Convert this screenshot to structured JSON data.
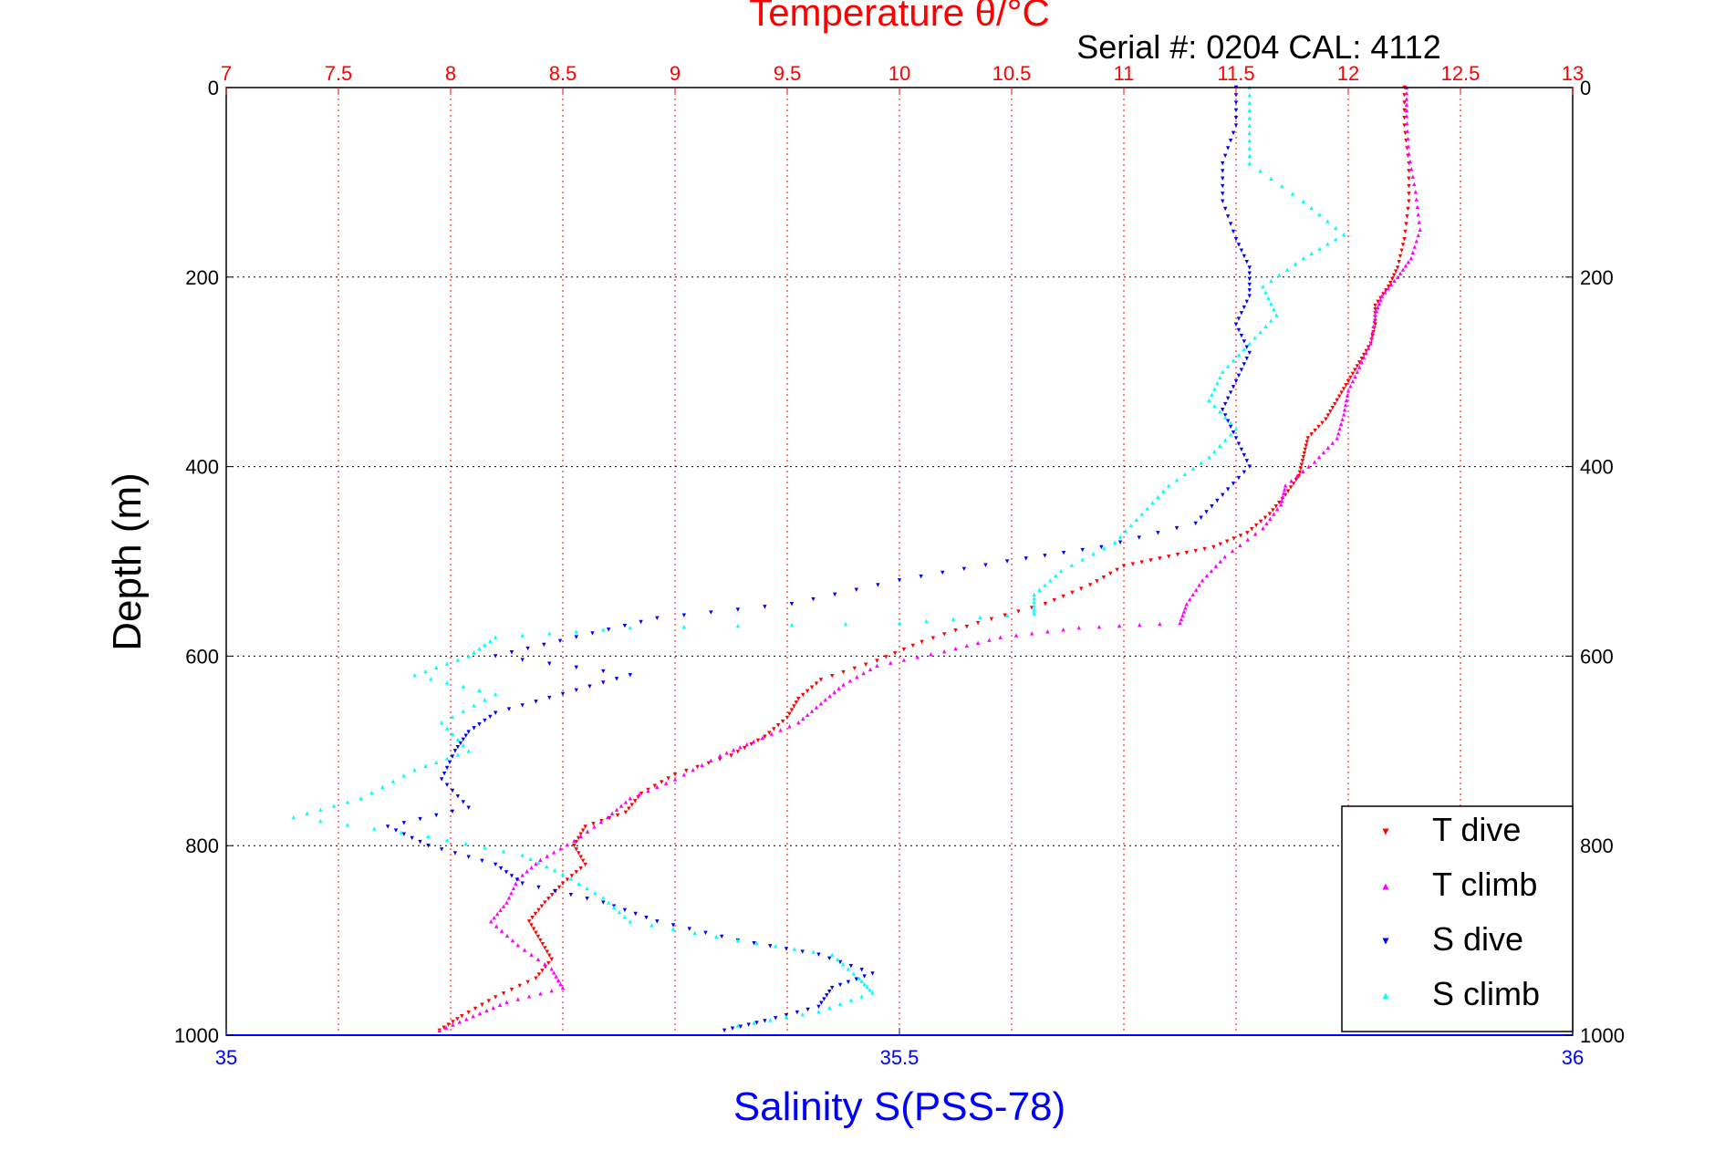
{
  "chart_data": {
    "type": "scatter",
    "title": "Temperature θ/°C",
    "subtitle": "Serial #: 0204  CAL: 4112",
    "ylabel": "Depth (m)",
    "xlabel_bottom": "Salinity S(PSS-78)",
    "xlabel_top": "Temperature θ/°C",
    "y_range": [
      0,
      1000
    ],
    "y_reversed": true,
    "y_ticks": [
      "0",
      "200",
      "400",
      "600",
      "800",
      "1000"
    ],
    "y_tick_values": [
      0,
      200,
      400,
      600,
      800,
      1000
    ],
    "temp_range": [
      7,
      13
    ],
    "temp_ticks": [
      "7",
      "7.5",
      "8",
      "8.5",
      "9",
      "9.5",
      "10",
      "10.5",
      "11",
      "11.5",
      "12",
      "12.5",
      "13"
    ],
    "temp_tick_values": [
      7,
      7.5,
      8,
      8.5,
      9,
      9.5,
      10,
      10.5,
      11,
      11.5,
      12,
      12.5,
      13
    ],
    "sal_range": [
      35,
      36
    ],
    "sal_ticks": [
      "35",
      "35.5",
      "36"
    ],
    "sal_tick_values": [
      35,
      35.5,
      36
    ],
    "grid": true,
    "legend_position": "bottom-right",
    "series": [
      {
        "name": "T dive",
        "axis": "temperature",
        "color": "#ff0000",
        "marker": "triangle-down",
        "points": [
          [
            12.25,
            0
          ],
          [
            12.25,
            40
          ],
          [
            12.27,
            80
          ],
          [
            12.27,
            120
          ],
          [
            12.25,
            160
          ],
          [
            12.22,
            190
          ],
          [
            12.18,
            210
          ],
          [
            12.12,
            230
          ],
          [
            12.12,
            250
          ],
          [
            12.1,
            270
          ],
          [
            12.05,
            290
          ],
          [
            12.0,
            310
          ],
          [
            11.95,
            330
          ],
          [
            11.9,
            350
          ],
          [
            11.82,
            370
          ],
          [
            11.8,
            390
          ],
          [
            11.78,
            410
          ],
          [
            11.72,
            430
          ],
          [
            11.65,
            450
          ],
          [
            11.55,
            470
          ],
          [
            11.4,
            485
          ],
          [
            11.2,
            495
          ],
          [
            11.0,
            505
          ],
          [
            10.85,
            525
          ],
          [
            10.65,
            545
          ],
          [
            10.35,
            565
          ],
          [
            10.1,
            585
          ],
          [
            9.9,
            605
          ],
          [
            9.65,
            625
          ],
          [
            9.55,
            645
          ],
          [
            9.5,
            665
          ],
          [
            9.4,
            685
          ],
          [
            9.25,
            705
          ],
          [
            9.0,
            725
          ],
          [
            8.85,
            745
          ],
          [
            8.78,
            765
          ],
          [
            8.6,
            780
          ],
          [
            8.55,
            800
          ],
          [
            8.6,
            820
          ],
          [
            8.5,
            840
          ],
          [
            8.42,
            860
          ],
          [
            8.35,
            880
          ],
          [
            8.4,
            900
          ],
          [
            8.45,
            920
          ],
          [
            8.38,
            940
          ],
          [
            8.2,
            960
          ],
          [
            8.05,
            980
          ],
          [
            7.95,
            995
          ]
        ]
      },
      {
        "name": "T climb",
        "axis": "temperature",
        "color": "#ff00ff",
        "marker": "triangle-up",
        "points": [
          [
            12.26,
            0
          ],
          [
            12.26,
            30
          ],
          [
            12.27,
            70
          ],
          [
            12.3,
            110
          ],
          [
            12.32,
            150
          ],
          [
            12.28,
            180
          ],
          [
            12.22,
            200
          ],
          [
            12.15,
            220
          ],
          [
            12.12,
            240
          ],
          [
            12.1,
            270
          ],
          [
            12.05,
            295
          ],
          [
            12.0,
            320
          ],
          [
            11.98,
            345
          ],
          [
            11.95,
            370
          ],
          [
            11.85,
            395
          ],
          [
            11.72,
            420
          ],
          [
            11.7,
            440
          ],
          [
            11.62,
            465
          ],
          [
            11.45,
            495
          ],
          [
            11.35,
            520
          ],
          [
            11.28,
            545
          ],
          [
            11.25,
            565
          ],
          [
            10.8,
            570
          ],
          [
            10.45,
            580
          ],
          [
            10.2,
            595
          ],
          [
            9.9,
            610
          ],
          [
            9.75,
            630
          ],
          [
            9.65,
            650
          ],
          [
            9.55,
            670
          ],
          [
            9.35,
            690
          ],
          [
            9.2,
            705
          ],
          [
            9.0,
            730
          ],
          [
            8.8,
            750
          ],
          [
            8.7,
            770
          ],
          [
            8.55,
            795
          ],
          [
            8.4,
            815
          ],
          [
            8.3,
            835
          ],
          [
            8.25,
            860
          ],
          [
            8.18,
            880
          ],
          [
            8.3,
            905
          ],
          [
            8.45,
            930
          ],
          [
            8.5,
            950
          ],
          [
            8.25,
            965
          ],
          [
            8.1,
            980
          ],
          [
            7.95,
            995
          ]
        ]
      },
      {
        "name": "S dive",
        "axis": "salinity",
        "color": "#0000ff",
        "marker": "triangle-down",
        "points": [
          [
            35.75,
            0
          ],
          [
            35.75,
            40
          ],
          [
            35.74,
            80
          ],
          [
            35.74,
            120
          ],
          [
            35.75,
            160
          ],
          [
            35.76,
            190
          ],
          [
            35.76,
            220
          ],
          [
            35.75,
            250
          ],
          [
            35.76,
            280
          ],
          [
            35.75,
            310
          ],
          [
            35.74,
            340
          ],
          [
            35.75,
            370
          ],
          [
            35.76,
            400
          ],
          [
            35.74,
            430
          ],
          [
            35.72,
            460
          ],
          [
            35.65,
            485
          ],
          [
            35.58,
            500
          ],
          [
            35.5,
            520
          ],
          [
            35.42,
            545
          ],
          [
            35.32,
            560
          ],
          [
            35.26,
            580
          ],
          [
            35.2,
            600
          ],
          [
            35.3,
            620
          ],
          [
            35.25,
            640
          ],
          [
            35.2,
            660
          ],
          [
            35.18,
            680
          ],
          [
            35.17,
            700
          ],
          [
            35.16,
            730
          ],
          [
            35.18,
            760
          ],
          [
            35.12,
            780
          ],
          [
            35.15,
            800
          ],
          [
            35.2,
            820
          ],
          [
            35.22,
            840
          ],
          [
            35.28,
            860
          ],
          [
            35.32,
            880
          ],
          [
            35.38,
            900
          ],
          [
            35.44,
            915
          ],
          [
            35.48,
            935
          ],
          [
            35.45,
            950
          ],
          [
            35.44,
            970
          ],
          [
            35.4,
            985
          ],
          [
            35.37,
            995
          ]
        ]
      },
      {
        "name": "S climb",
        "axis": "salinity",
        "color": "#00ffff",
        "marker": "triangle-up",
        "points": [
          [
            35.76,
            0
          ],
          [
            35.76,
            40
          ],
          [
            35.76,
            80
          ],
          [
            35.8,
            120
          ],
          [
            35.83,
            155
          ],
          [
            35.8,
            180
          ],
          [
            35.77,
            210
          ],
          [
            35.78,
            240
          ],
          [
            35.76,
            270
          ],
          [
            35.74,
            300
          ],
          [
            35.73,
            330
          ],
          [
            35.75,
            360
          ],
          [
            35.73,
            390
          ],
          [
            35.7,
            420
          ],
          [
            35.68,
            450
          ],
          [
            35.66,
            480
          ],
          [
            35.62,
            510
          ],
          [
            35.6,
            535
          ],
          [
            35.6,
            555
          ],
          [
            35.5,
            565
          ],
          [
            35.3,
            570
          ],
          [
            35.2,
            580
          ],
          [
            35.18,
            600
          ],
          [
            35.14,
            620
          ],
          [
            35.2,
            640
          ],
          [
            35.16,
            670
          ],
          [
            35.18,
            700
          ],
          [
            35.14,
            720
          ],
          [
            35.1,
            750
          ],
          [
            35.05,
            770
          ],
          [
            35.15,
            790
          ],
          [
            35.22,
            810
          ],
          [
            35.25,
            830
          ],
          [
            35.28,
            855
          ],
          [
            35.3,
            880
          ],
          [
            35.38,
            900
          ],
          [
            35.45,
            915
          ],
          [
            35.47,
            940
          ],
          [
            35.48,
            955
          ],
          [
            35.44,
            975
          ],
          [
            35.38,
            990
          ]
        ]
      }
    ]
  }
}
